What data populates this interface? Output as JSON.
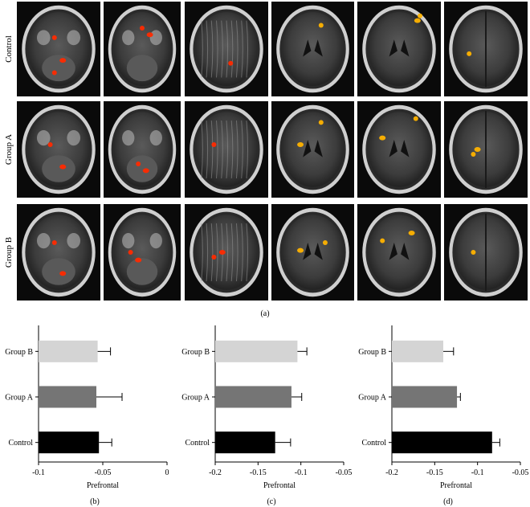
{
  "figure": {
    "panel_a_label": "(a)",
    "row_labels": [
      "Control",
      "Group A",
      "Group B"
    ],
    "slice_count_per_row": 6
  },
  "chart_data": [
    {
      "type": "bar",
      "orientation": "horizontal",
      "panel_label": "(b)",
      "categories": [
        "Control",
        "Group A",
        "Group B"
      ],
      "values": [
        -0.053,
        -0.055,
        -0.054
      ],
      "errors": [
        0.01,
        0.02,
        0.01
      ],
      "colors": [
        "#000000",
        "#757575",
        "#d4d4d4"
      ],
      "xlabel": "Prefrontal",
      "xlim": [
        -0.1,
        0
      ],
      "xticks": [
        -0.1,
        -0.05,
        0
      ],
      "xtick_labels": [
        "-0.1",
        "-0.05",
        "0"
      ]
    },
    {
      "type": "bar",
      "orientation": "horizontal",
      "panel_label": "(c)",
      "categories": [
        "Control",
        "Group A",
        "Group B"
      ],
      "values": [
        -0.13,
        -0.111,
        -0.104
      ],
      "errors": [
        0.018,
        0.012,
        0.011
      ],
      "colors": [
        "#000000",
        "#757575",
        "#d4d4d4"
      ],
      "xlabel": "Prefrontal",
      "xlim": [
        -0.2,
        -0.05
      ],
      "xticks": [
        -0.2,
        -0.15,
        -0.1,
        -0.05
      ],
      "xtick_labels": [
        "-0.2",
        "-0.15",
        "-0.1",
        "-0.05"
      ]
    },
    {
      "type": "bar",
      "orientation": "horizontal",
      "panel_label": "(d)",
      "categories": [
        "Control",
        "Group A",
        "Group B"
      ],
      "values": [
        -0.083,
        -0.124,
        -0.14
      ],
      "errors": [
        0.009,
        0.004,
        0.012
      ],
      "colors": [
        "#000000",
        "#757575",
        "#d4d4d4"
      ],
      "xlabel": "Prefrontal",
      "xlim": [
        -0.2,
        -0.05
      ],
      "xticks": [
        -0.2,
        -0.15,
        -0.1,
        -0.05
      ],
      "xtick_labels": [
        "-0.2",
        "-0.15",
        "-0.1",
        "-0.05"
      ]
    }
  ]
}
